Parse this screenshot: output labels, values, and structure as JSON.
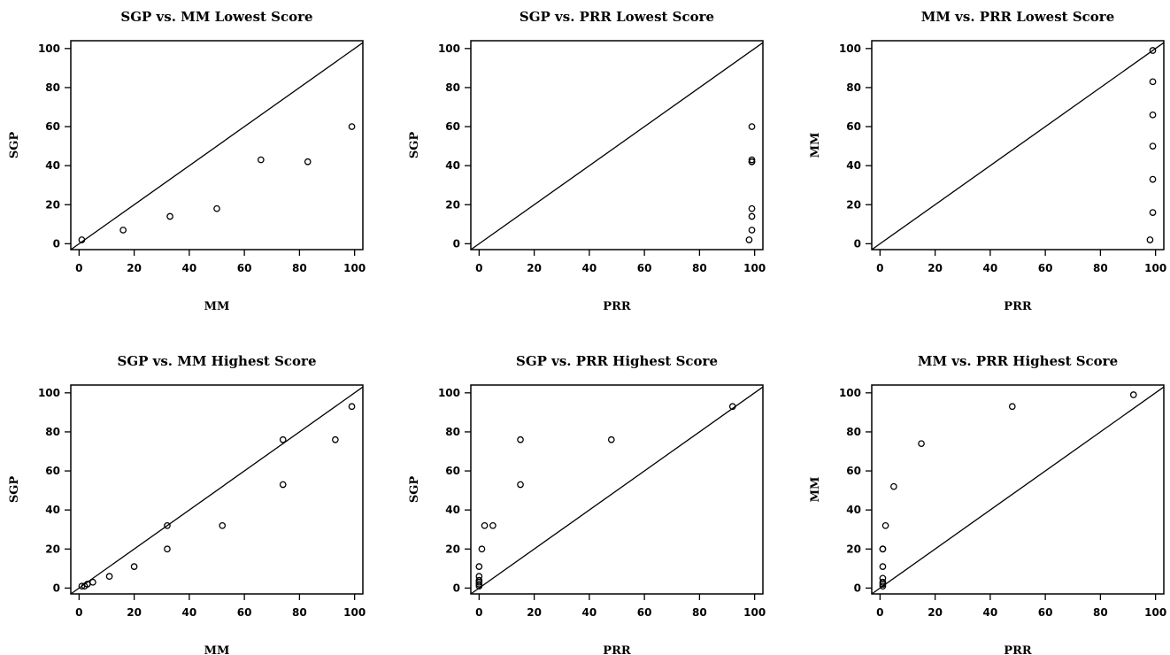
{
  "chart_data": [
    {
      "type": "scatter",
      "title": "SGP vs. MM Lowest Score",
      "xlabel": "MM",
      "ylabel": "SGP",
      "xlim": [
        -3,
        103
      ],
      "ylim": [
        -3,
        104
      ],
      "x_ticks": [
        "0",
        "20",
        "40",
        "60",
        "80",
        "100"
      ],
      "y_ticks": [
        "0",
        "20",
        "40",
        "60",
        "80",
        "100"
      ],
      "reference_line": "y = x",
      "x": [
        1,
        16,
        33,
        50,
        66,
        83,
        99
      ],
      "y": [
        2,
        7,
        14,
        18,
        43,
        42,
        60
      ]
    },
    {
      "type": "scatter",
      "title": "SGP vs. PRR Lowest Score",
      "xlabel": "PRR",
      "ylabel": "SGP",
      "xlim": [
        -3,
        103
      ],
      "ylim": [
        -3,
        104
      ],
      "x_ticks": [
        "0",
        "20",
        "40",
        "60",
        "80",
        "100"
      ],
      "y_ticks": [
        "0",
        "20",
        "40",
        "60",
        "80",
        "100"
      ],
      "reference_line": "y = x",
      "x": [
        98,
        99,
        99,
        99,
        99,
        99,
        99,
        99
      ],
      "y": [
        2,
        7,
        14,
        18,
        42,
        43,
        60,
        42
      ]
    },
    {
      "type": "scatter",
      "title": "MM vs. PRR Lowest Score",
      "xlabel": "PRR",
      "ylabel": "MM",
      "xlim": [
        -3,
        103
      ],
      "ylim": [
        -3,
        104
      ],
      "x_ticks": [
        "0",
        "20",
        "40",
        "60",
        "80",
        "100"
      ],
      "y_ticks": [
        "0",
        "20",
        "40",
        "60",
        "80",
        "100"
      ],
      "reference_line": "y = x",
      "x": [
        98,
        99,
        99,
        99,
        99,
        99,
        99
      ],
      "y": [
        2,
        16,
        33,
        50,
        66,
        83,
        99
      ]
    },
    {
      "type": "scatter",
      "title": "SGP vs. MM Highest Score",
      "xlabel": "MM",
      "ylabel": "SGP",
      "xlim": [
        -3,
        103
      ],
      "ylim": [
        -3,
        104
      ],
      "x_ticks": [
        "0",
        "20",
        "40",
        "60",
        "80",
        "100"
      ],
      "y_ticks": [
        "0",
        "20",
        "40",
        "60",
        "80",
        "100"
      ],
      "reference_line": "y = x",
      "x": [
        1,
        2,
        3,
        5,
        11,
        20,
        32,
        32,
        52,
        74,
        74,
        93,
        99
      ],
      "y": [
        1,
        1,
        2,
        3,
        6,
        11,
        20,
        32,
        32,
        53,
        76,
        76,
        93
      ]
    },
    {
      "type": "scatter",
      "title": "SGP vs. PRR Highest Score",
      "xlabel": "PRR",
      "ylabel": "SGP",
      "xlim": [
        -3,
        103
      ],
      "ylim": [
        -3,
        104
      ],
      "x_ticks": [
        "0",
        "20",
        "40",
        "60",
        "80",
        "100"
      ],
      "y_ticks": [
        "0",
        "20",
        "40",
        "60",
        "80",
        "100"
      ],
      "reference_line": "y = x",
      "x": [
        0,
        0,
        0,
        0,
        0,
        0,
        1,
        2,
        5,
        15,
        15,
        48,
        92
      ],
      "y": [
        1,
        2,
        3,
        4,
        6,
        11,
        20,
        32,
        32,
        53,
        76,
        76,
        93
      ]
    },
    {
      "type": "scatter",
      "title": "MM vs. PRR Highest Score",
      "xlabel": "PRR",
      "ylabel": "MM",
      "xlim": [
        -3,
        103
      ],
      "ylim": [
        -3,
        104
      ],
      "x_ticks": [
        "0",
        "20",
        "40",
        "60",
        "80",
        "100"
      ],
      "y_ticks": [
        "0",
        "20",
        "40",
        "60",
        "80",
        "100"
      ],
      "reference_line": "y = x",
      "x": [
        1,
        1,
        1,
        1,
        1,
        1,
        1,
        2,
        5,
        15,
        48,
        92
      ],
      "y": [
        1,
        2,
        3,
        5,
        11,
        20,
        20,
        32,
        52,
        74,
        93,
        99
      ]
    }
  ]
}
